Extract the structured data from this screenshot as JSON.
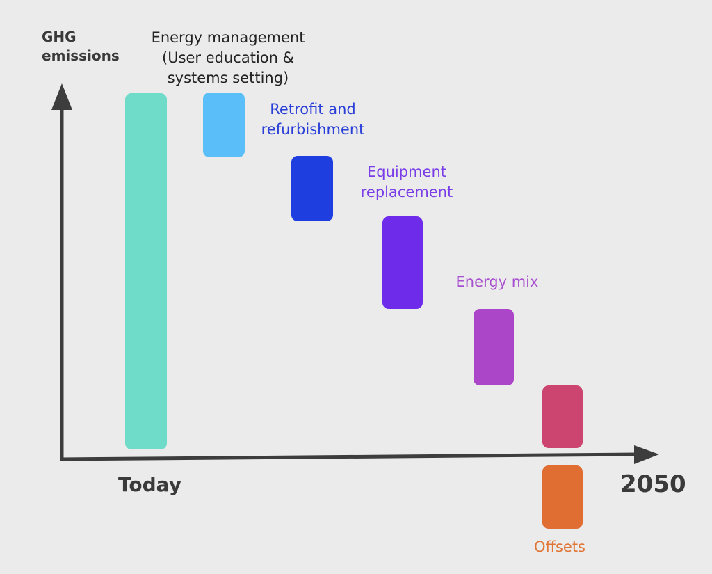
{
  "y_axis_label": "GHG\nemissions",
  "x_axis_start": "Today",
  "x_axis_end": "2050",
  "colors": {
    "axis": "#3d3d3d",
    "background": "#ebebeb"
  },
  "chart_data": {
    "type": "waterfall",
    "baseline": {
      "label": "Today",
      "color": "#6fdbc9"
    },
    "steps": [
      {
        "label": "Energy management\n(User education  &\nsystems setting)",
        "color": "#5abff8",
        "label_color": "#222222"
      },
      {
        "label": "Retrofit and\nrefurbishment",
        "color": "#1f3ee0",
        "label_color": "#2a3fd8"
      },
      {
        "label": "Equipment\nreplacement",
        "color": "#6e2bea",
        "label_color": "#7a3ee8"
      },
      {
        "label": "Energy mix",
        "color": "#ac46c8",
        "label_color": "#a84fcf"
      },
      {
        "label": "",
        "color": "#cc4470",
        "label_color": "#cc4470"
      },
      {
        "label": "Offsets",
        "color": "#e06d32",
        "label_color": "#e07535"
      }
    ]
  }
}
